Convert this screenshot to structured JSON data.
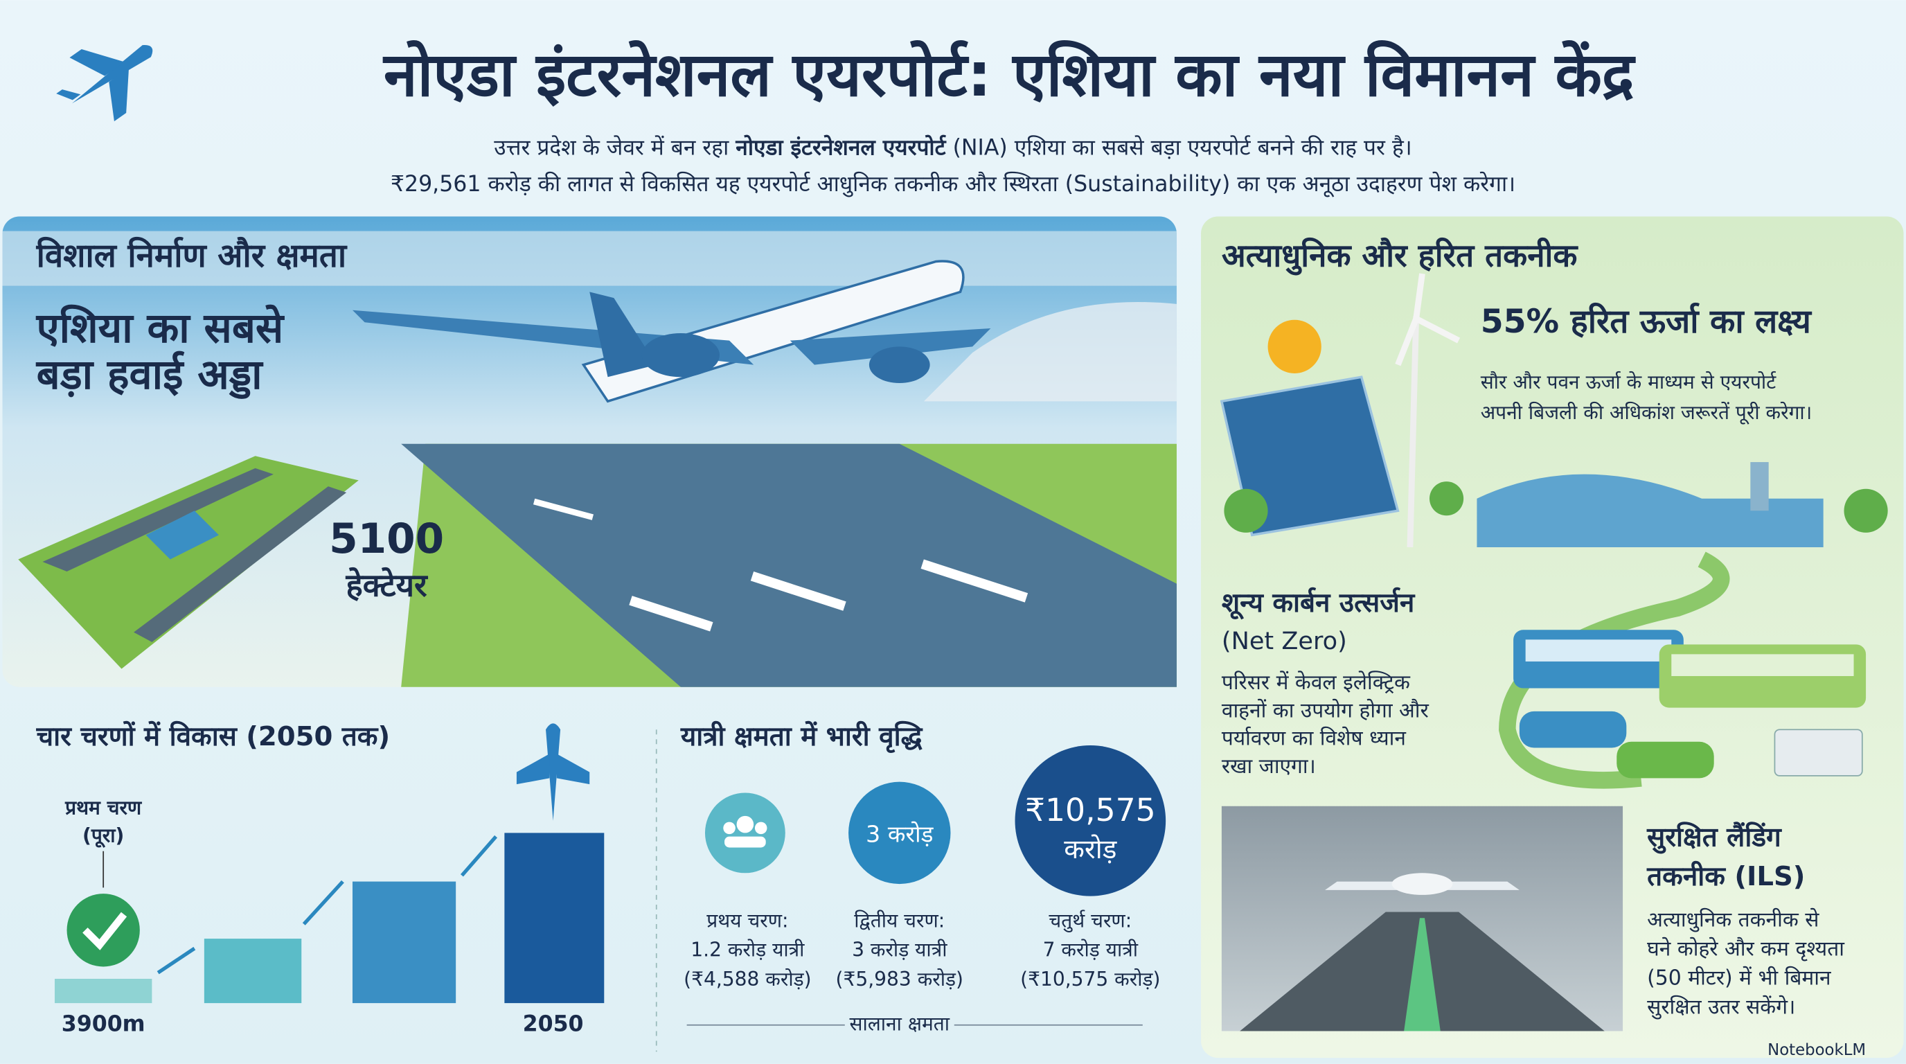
{
  "header": {
    "title": "नोएडा इंटरनेशनल एयरपोर्ट: एशिया का नया विमानन केंद्र",
    "subtitle_line1": {
      "before": "उत्तर प्रदेश के जेवर में बन रहा ",
      "bold": "नोएडा इंटरनेशनल एयरपोर्ट",
      "after": " (NIA) एशिया का सबसे बड़ा एयरपोर्ट बनने की राह पर है।"
    },
    "subtitle_line2": "₹29,561 करोड़ की लागत से विकसित यह एयरपोर्ट आधुनिक तकनीक और स्थिरता (Sustainability) का एक अनूठा उदाहरण पेश करेगा।"
  },
  "construction": {
    "heading": "विशाल निर्माण और क्षमता",
    "headline": [
      "एशिया का सबसे",
      "बड़ा हवाई अड्डा"
    ],
    "area_value": "5100",
    "area_unit": "हेक्टेयर"
  },
  "phases": {
    "heading": "चार चरणों में विकास (2050 तक)",
    "callout": [
      "प्रथम चरण",
      "(पूरा)"
    ],
    "axis_start": "3900m",
    "axis_end": "2050"
  },
  "capacity": {
    "heading": "यात्री क्षमता में भारी वृद्धि",
    "circle_2": "3 करोड़",
    "circle_3": [
      "₹10,575",
      "करोड़"
    ],
    "items": [
      {
        "phase": "प्रथय चरण:",
        "passengers": "1.2 करोड़ यात्री",
        "cost": "(₹4,588 करोड़)"
      },
      {
        "phase": "द्वितीय चरण:",
        "passengers": "3 करोड़ यात्री",
        "cost": "(₹5,983 करोड़)"
      },
      {
        "phase": "चतुर्थ चरण:",
        "passengers": "7 करोड़ यात्री",
        "cost": "(₹10,575 करोड़)"
      }
    ],
    "footer": "सालाना क्षमता"
  },
  "technology": {
    "heading": "अत्याधुनिक और हरित तकनीक",
    "green_energy": {
      "title": "55% हरित ऊर्जा का लक्ष्य",
      "desc": [
        "सौर और पवन ऊर्जा के माध्यम से एयरपोर्ट",
        "अपनी बिजली की अधिकांश जरूरतें पूरी करेगा।"
      ]
    },
    "net_zero": {
      "title": "शून्य कार्बन उत्सर्जन",
      "subtitle": "(Net Zero)",
      "desc": [
        "परिसर में केवल इलेक्ट्रिक",
        "वाहनों का उपयोग होगा और",
        "पर्यावरण का विशेष ध्यान",
        "रखा जाएगा।"
      ]
    },
    "ils": {
      "title": [
        "सुरक्षित लैंडिंग",
        "तकनीक (ILS)"
      ],
      "desc": [
        "अत्याधुनिक तकनीक से",
        "घने कोहरे और कम दृश्यता",
        "(50 मीटर) में भी बिमान",
        "सुरक्षित उतर सकेंगे।"
      ]
    }
  },
  "brand": "NotebookLM"
}
